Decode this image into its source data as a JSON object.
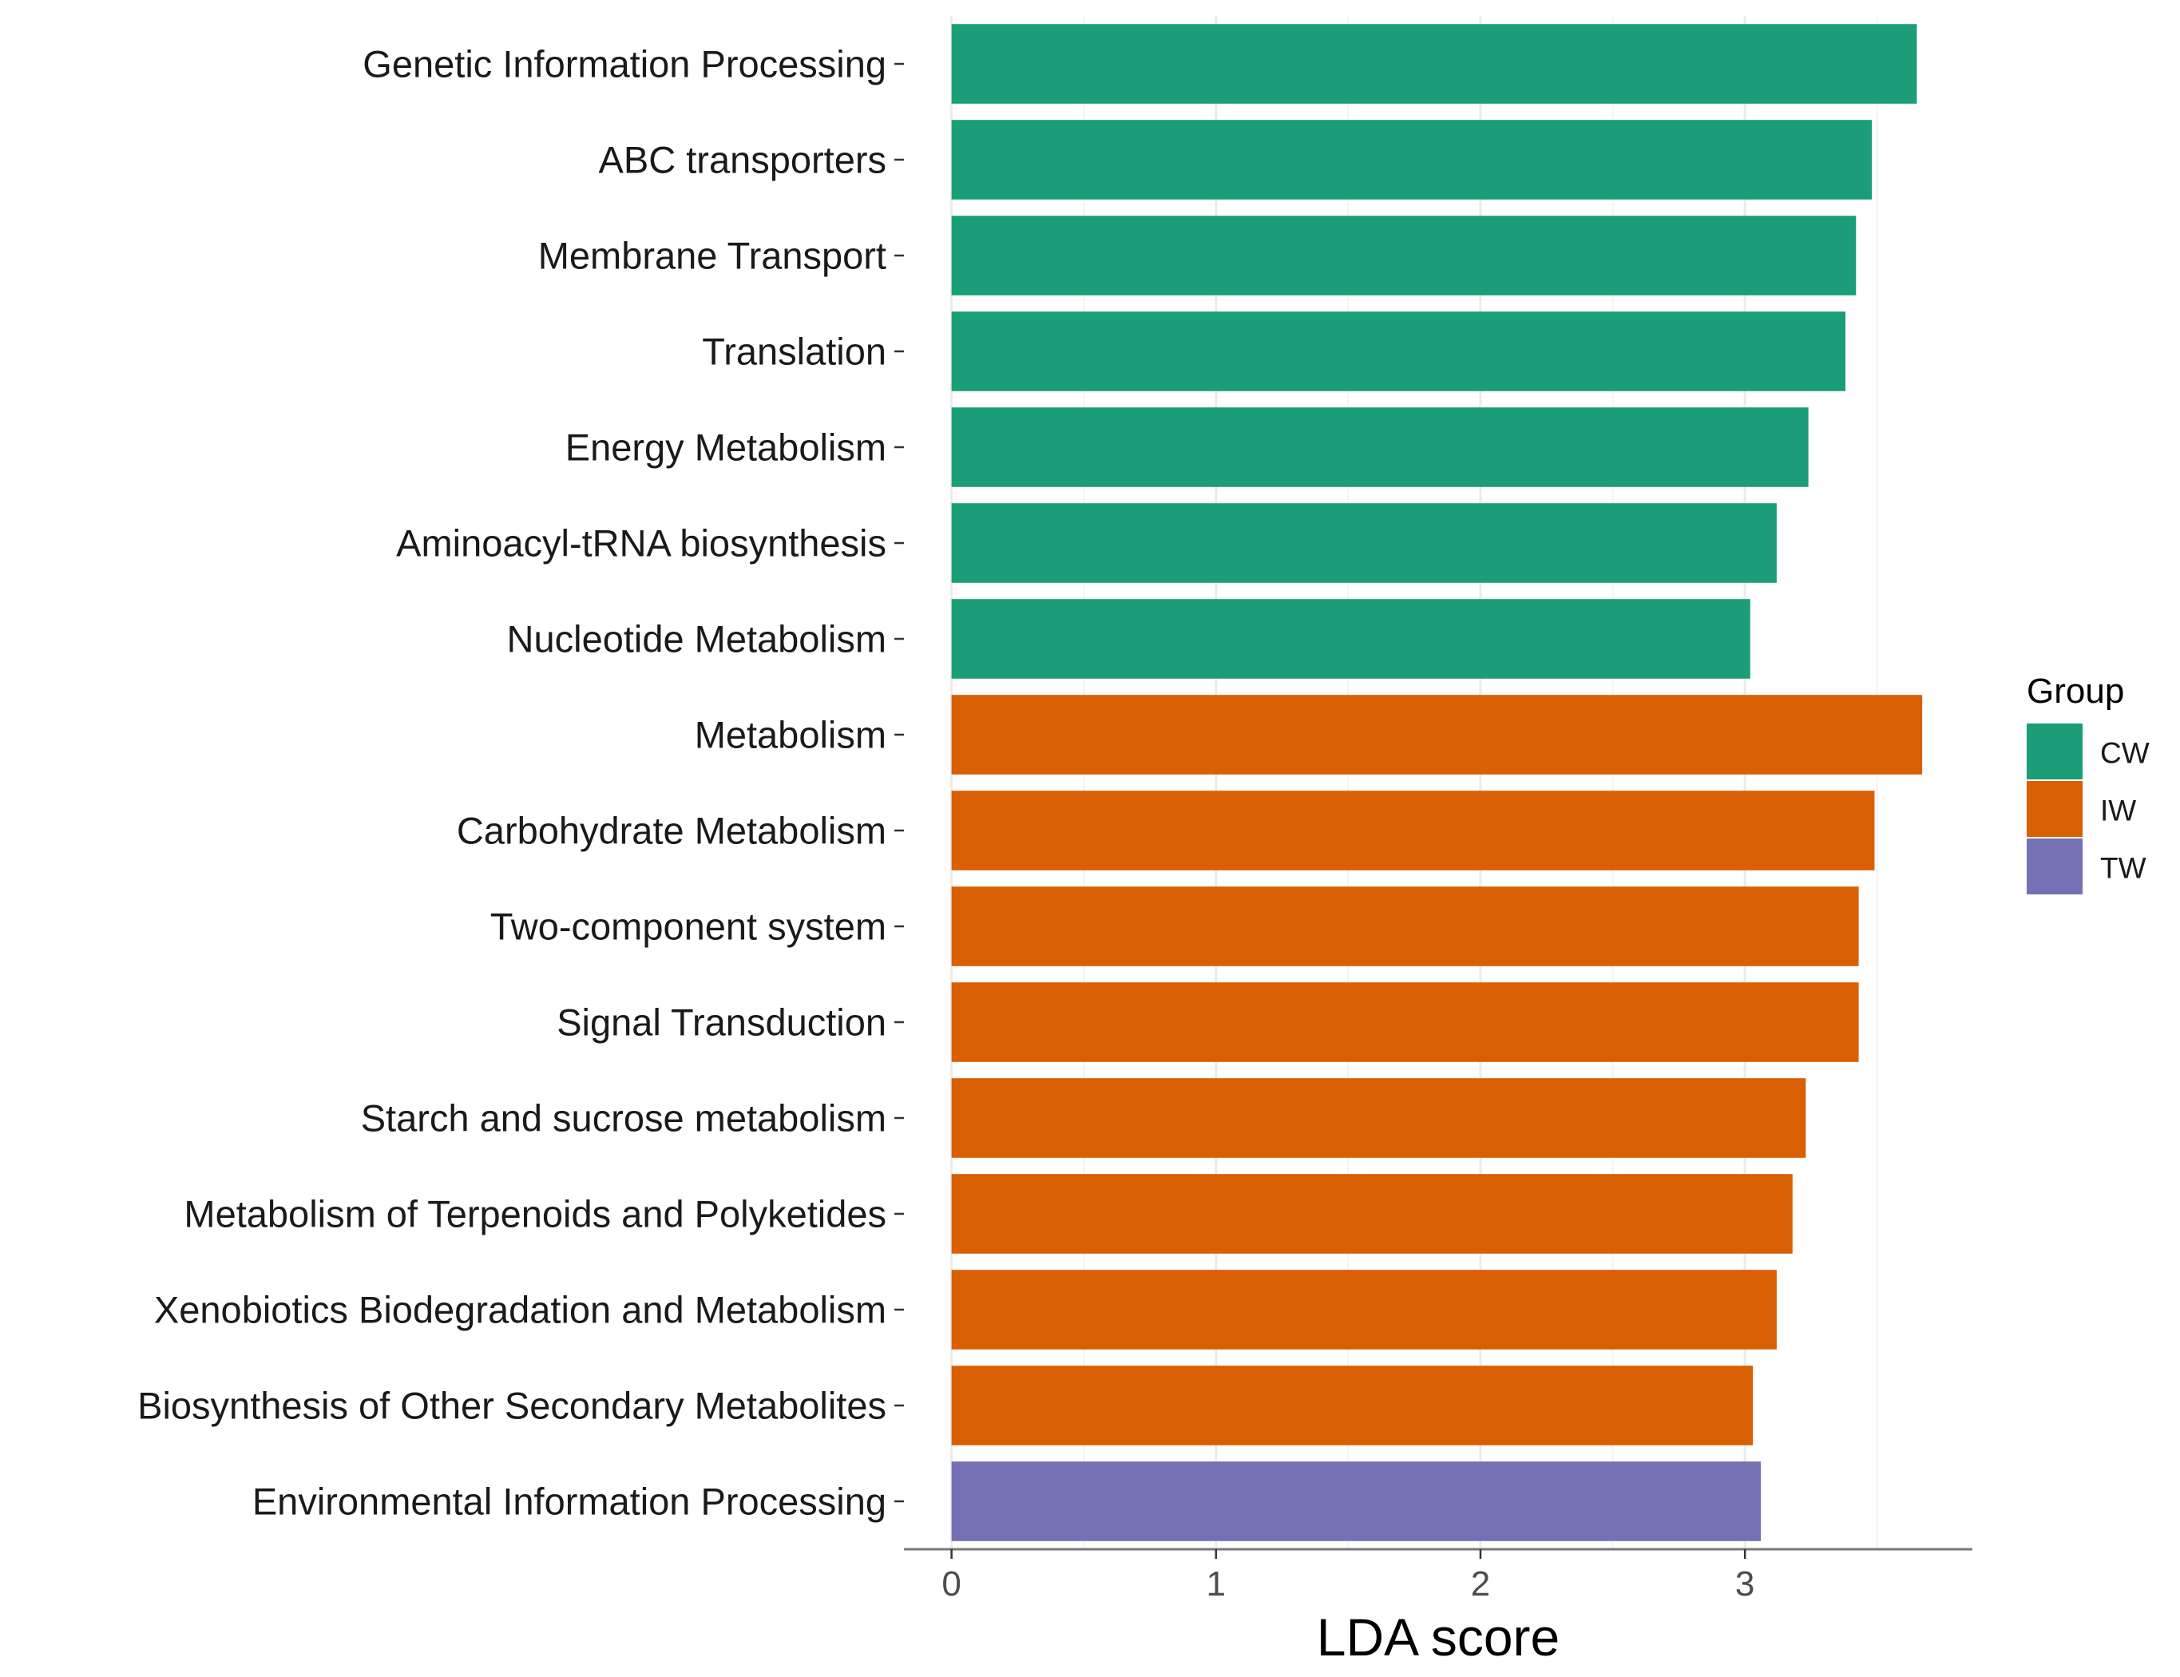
{
  "chart_data": {
    "type": "bar",
    "orientation": "horizontal",
    "title": "",
    "xlabel": "LDA score",
    "ylabel": "",
    "xlim": [
      -0.18,
      3.86
    ],
    "xticks": [
      0,
      1,
      2,
      3
    ],
    "grid": true,
    "legend": {
      "title": "Group",
      "position": "right",
      "entries": [
        {
          "name": "CW",
          "color": "#1B9E77"
        },
        {
          "name": "IW",
          "color": "#D95F02"
        },
        {
          "name": "TW",
          "color": "#7570B3"
        }
      ]
    },
    "categories": [
      "Genetic Information Processing",
      "ABC transporters",
      "Membrane Transport",
      "Translation",
      "Energy Metabolism",
      "Aminoacyl-tRNA biosynthesis",
      "Nucleotide Metabolism",
      "Metabolism",
      "Carbohydrate Metabolism",
      "Two-component system",
      "Signal Transduction",
      "Starch and sucrose metabolism",
      "Metabolism of Terpenoids and Polyketides",
      "Xenobiotics Biodegradation and Metabolism",
      "Biosynthesis of Other Secondary Metabolites",
      "Environmental Information Processing"
    ],
    "values": [
      3.65,
      3.48,
      3.42,
      3.38,
      3.24,
      3.12,
      3.02,
      3.67,
      3.49,
      3.43,
      3.43,
      3.23,
      3.18,
      3.12,
      3.03,
      3.06
    ],
    "groups": [
      "CW",
      "CW",
      "CW",
      "CW",
      "CW",
      "CW",
      "CW",
      "IW",
      "IW",
      "IW",
      "IW",
      "IW",
      "IW",
      "IW",
      "IW",
      "TW"
    ]
  }
}
